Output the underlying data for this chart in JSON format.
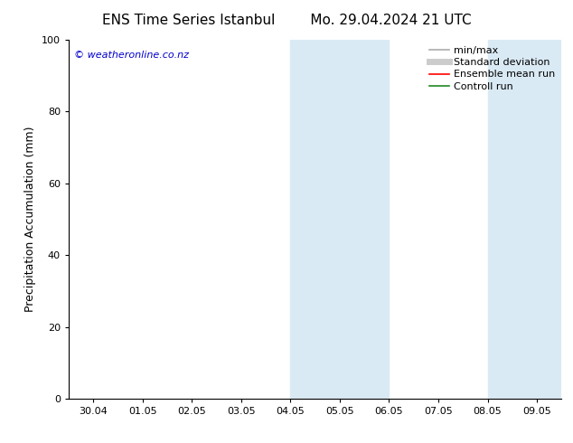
{
  "title_left": "ENS Time Series Istanbul",
  "title_right": "Mo. 29.04.2024 21 UTC",
  "ylabel": "Precipitation Accumulation (mm)",
  "ylim": [
    0,
    100
  ],
  "yticks": [
    0,
    20,
    40,
    60,
    80,
    100
  ],
  "xtick_labels": [
    "30.04",
    "01.05",
    "02.05",
    "03.05",
    "04.05",
    "05.05",
    "06.05",
    "07.05",
    "08.05",
    "09.05"
  ],
  "shaded_regions": [
    {
      "xmin": 4.0,
      "xmax": 6.0,
      "color": "#daeaf5"
    },
    {
      "xmin": 8.0,
      "xmax": 9.5,
      "color": "#daeaf5"
    }
  ],
  "watermark_text": "© weatheronline.co.nz",
  "watermark_color": "#0000cc",
  "legend_entries": [
    {
      "label": "min/max",
      "color": "#aaaaaa",
      "lw": 1.2
    },
    {
      "label": "Standard deviation",
      "color": "#cccccc",
      "lw": 5
    },
    {
      "label": "Ensemble mean run",
      "color": "#ff0000",
      "lw": 1.2
    },
    {
      "label": "Controll run",
      "color": "#228822",
      "lw": 1.2
    }
  ],
  "background_color": "#ffffff",
  "title_fontsize": 11,
  "ylabel_fontsize": 9,
  "tick_fontsize": 8,
  "legend_fontsize": 8,
  "watermark_fontsize": 8
}
